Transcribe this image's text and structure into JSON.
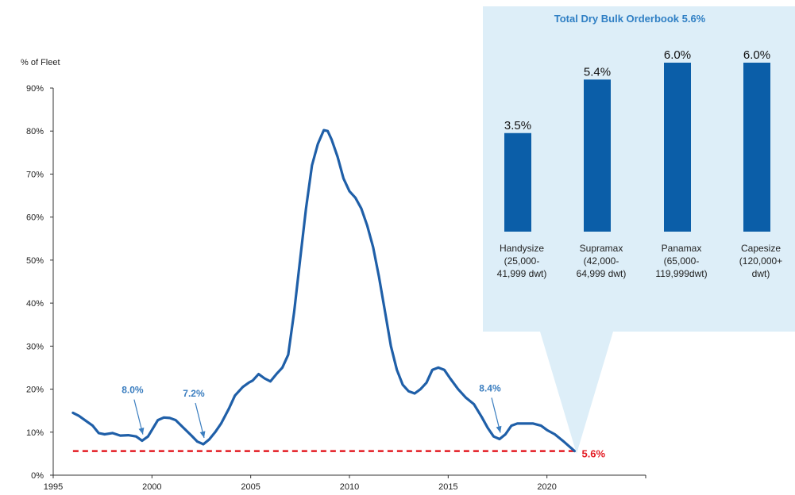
{
  "chart_data": [
    {
      "type": "line",
      "title": "",
      "ylabel": "% of Fleet",
      "xlabel": "",
      "xlim": [
        1995,
        2025
      ],
      "ylim": [
        0,
        90
      ],
      "x_ticks": [
        "1995",
        "2000",
        "2005",
        "2010",
        "2015",
        "2020"
      ],
      "y_ticks": [
        "0%",
        "10%",
        "20%",
        "30%",
        "40%",
        "50%",
        "60%",
        "70%",
        "80%",
        "90%"
      ],
      "grid": false,
      "color": "#1f5fa8",
      "series": [
        {
          "x": [
            1996.0,
            1996.3,
            1996.6,
            1997.0,
            1997.3,
            1997.6,
            1998.0,
            1998.4,
            1998.8,
            1999.2,
            1999.5,
            1999.8,
            2000.0,
            2000.3,
            2000.6,
            2000.9,
            2001.2,
            2001.6,
            2002.0,
            2002.3,
            2002.6,
            2002.9,
            2003.2,
            2003.5,
            2003.9,
            2004.2,
            2004.6,
            2004.9,
            2005.1,
            2005.4,
            2005.7,
            2006.0,
            2006.3,
            2006.6,
            2006.9,
            2007.2,
            2007.5,
            2007.8,
            2008.1,
            2008.4,
            2008.7,
            2008.9,
            2009.1,
            2009.4,
            2009.7,
            2010.0,
            2010.3,
            2010.6,
            2010.9,
            2011.2,
            2011.5,
            2011.8,
            2012.1,
            2012.4,
            2012.7,
            2013.0,
            2013.3,
            2013.6,
            2013.9,
            2014.2,
            2014.5,
            2014.8,
            2015.1,
            2015.5,
            2015.9,
            2016.3,
            2016.7,
            2017.0,
            2017.3,
            2017.6,
            2017.9,
            2018.2,
            2018.5,
            2018.9,
            2019.3,
            2019.7,
            2020.0,
            2020.4,
            2020.8,
            2021.1,
            2021.4
          ],
          "values": [
            14.5,
            13.8,
            12.8,
            11.5,
            9.8,
            9.5,
            9.8,
            9.2,
            9.3,
            9.0,
            8.0,
            9.0,
            10.5,
            12.8,
            13.4,
            13.3,
            12.8,
            11.0,
            9.2,
            7.8,
            7.2,
            8.3,
            10.0,
            12.0,
            15.5,
            18.5,
            20.5,
            21.5,
            22.0,
            23.5,
            22.5,
            21.8,
            23.5,
            25.0,
            28.0,
            38.0,
            50.0,
            62.0,
            72.0,
            77.0,
            80.2,
            80.0,
            78.0,
            74.0,
            69.0,
            66.0,
            64.5,
            62.0,
            58.0,
            53.0,
            46.0,
            38.0,
            30.0,
            24.5,
            21.0,
            19.5,
            19.0,
            20.0,
            21.5,
            24.5,
            25.0,
            24.5,
            22.5,
            20.0,
            18.0,
            16.5,
            13.5,
            11.0,
            9.0,
            8.4,
            9.5,
            11.5,
            12.0,
            12.0,
            12.0,
            11.5,
            10.5,
            9.5,
            8.0,
            6.8,
            5.6
          ]
        }
      ],
      "reference_line": {
        "value": 5.6,
        "style": "dashed",
        "color": "#e31b23"
      },
      "annotations": [
        {
          "label": "8.0%",
          "x": 1999.5,
          "y": 8.0
        },
        {
          "label": "7.2%",
          "x": 2002.6,
          "y": 7.2
        },
        {
          "label": "8.4%",
          "x": 2017.6,
          "y": 8.4
        }
      ],
      "current_label": "5.6%"
    },
    {
      "type": "bar",
      "title": "Total Dry Bulk Orderbook 5.6%",
      "background": "#ddeef8",
      "bar_color": "#0b5ea8",
      "ylim": [
        0,
        6.0
      ],
      "categories": [
        [
          "Handysize",
          "(25,000-",
          "41,999 dwt)"
        ],
        [
          "Supramax",
          "(42,000-",
          "64,999 dwt)"
        ],
        [
          "Panamax",
          "(65,000-",
          "119,999dwt)"
        ],
        [
          "Capesize",
          "(120,000+",
          "dwt)"
        ]
      ],
      "values": [
        3.5,
        5.4,
        6.0,
        6.0
      ],
      "data_labels": [
        "3.5%",
        "5.4%",
        "6.0%",
        "6.0%"
      ]
    }
  ]
}
